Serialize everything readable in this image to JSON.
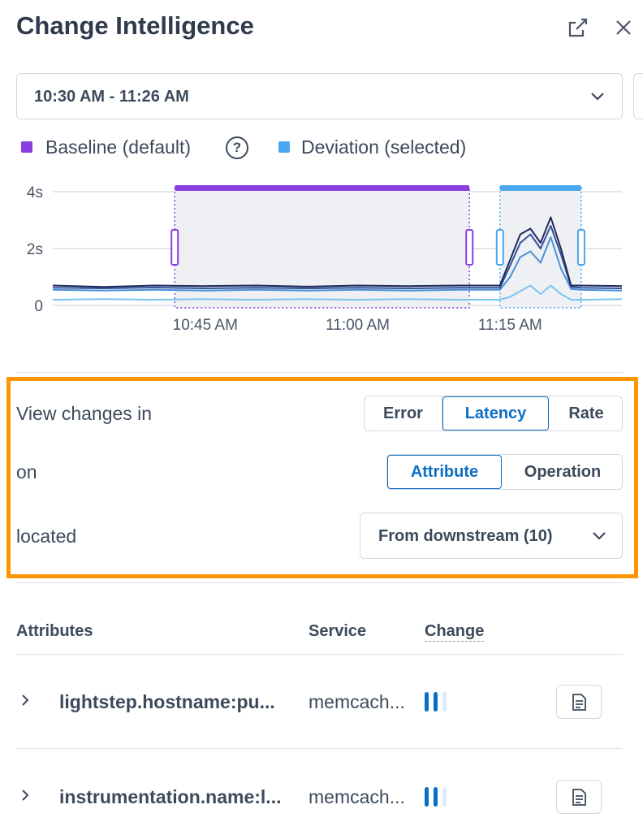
{
  "header": {
    "title": "Change Intelligence"
  },
  "time_range": "10:30 AM - 11:26 AM",
  "legend": {
    "baseline": "Baseline (default)",
    "deviation": "Deviation (selected)",
    "help": "?"
  },
  "chart_data": {
    "type": "line",
    "x": [
      "10:30 AM",
      "10:35 AM",
      "10:40 AM",
      "10:45 AM",
      "10:50 AM",
      "10:55 AM",
      "11:00 AM",
      "11:05 AM",
      "11:10 AM",
      "11:14 AM",
      "11:15 AM",
      "11:16 AM",
      "11:17 AM",
      "11:18 AM",
      "11:19 AM",
      "11:20 AM",
      "11:21 AM",
      "11:22 AM",
      "11:26 AM"
    ],
    "series": [
      {
        "color": "#1f2a5c",
        "values": [
          0.7,
          0.65,
          0.7,
          0.68,
          0.7,
          0.66,
          0.7,
          0.68,
          0.7,
          0.7,
          1.6,
          2.5,
          2.7,
          2.2,
          3.1,
          2.0,
          0.7,
          0.7,
          0.68
        ]
      },
      {
        "color": "#34529a",
        "values": [
          0.62,
          0.6,
          0.63,
          0.6,
          0.62,
          0.6,
          0.62,
          0.6,
          0.62,
          0.62,
          1.4,
          2.2,
          2.5,
          2.0,
          2.8,
          1.8,
          0.65,
          0.62,
          0.6
        ]
      },
      {
        "color": "#4a90d9",
        "values": [
          0.55,
          0.52,
          0.55,
          0.52,
          0.55,
          0.52,
          0.55,
          0.52,
          0.55,
          0.55,
          1.0,
          1.7,
          1.9,
          1.5,
          2.4,
          1.3,
          0.58,
          0.55,
          0.52
        ]
      },
      {
        "color": "#7cc4f0",
        "values": [
          0.2,
          0.22,
          0.2,
          0.22,
          0.2,
          0.22,
          0.2,
          0.22,
          0.2,
          0.2,
          0.3,
          0.5,
          0.7,
          0.4,
          0.7,
          0.4,
          0.2,
          0.2,
          0.22
        ]
      }
    ],
    "xlim": [
      "10:30 AM",
      "11:26 AM"
    ],
    "xticks": [
      "10:45 AM",
      "11:00 AM",
      "11:15 AM"
    ],
    "ylim": [
      0,
      4
    ],
    "yticks": [
      {
        "value": 0,
        "label": "0"
      },
      {
        "value": 2,
        "label": "2s"
      },
      {
        "value": 4,
        "label": "4s"
      }
    ],
    "grid": true,
    "baseline_range": [
      "10:42 AM",
      "11:11 AM"
    ],
    "deviation_range": [
      "11:14 AM",
      "11:22 AM"
    ],
    "baseline_color": "#8a3ee0",
    "deviation_color": "#4aa8ee"
  },
  "filters": {
    "view_label": "View changes in",
    "view_options": [
      "Error",
      "Latency",
      "Rate"
    ],
    "on_label": "on",
    "on_options": [
      "Attribute",
      "Operation"
    ],
    "located_label": "located",
    "located_value": "From downstream (10)"
  },
  "table": {
    "headers": [
      "Attributes",
      "Service",
      "Change"
    ],
    "rows": [
      [
        "lightstep.hostname:pu...",
        "memcach..."
      ],
      [
        "instrumentation.name:l...",
        "memcach..."
      ]
    ]
  }
}
